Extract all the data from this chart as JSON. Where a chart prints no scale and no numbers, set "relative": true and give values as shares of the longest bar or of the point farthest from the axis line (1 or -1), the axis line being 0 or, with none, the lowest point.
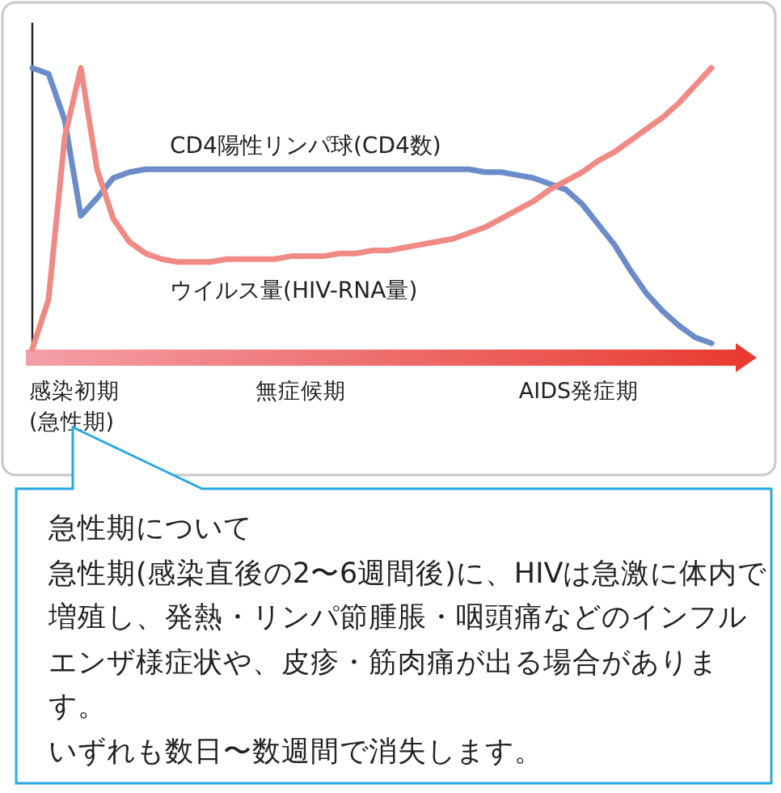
{
  "chart_data": {
    "type": "line",
    "relative": true,
    "categories": [
      null,
      null,
      null,
      null,
      null,
      null,
      null,
      null,
      null,
      null,
      null,
      null,
      null,
      null,
      null,
      null,
      null,
      null,
      null,
      null,
      null,
      null,
      null,
      null,
      null,
      null,
      null,
      null,
      null,
      null,
      null,
      null,
      null,
      null,
      null,
      null,
      null,
      null,
      null,
      null,
      null,
      null,
      null
    ],
    "series": [
      {
        "name": "CD4陽性リンパ球(CD4数)",
        "color": "#6b8cc8",
        "values": [
          1.0,
          0.98,
          0.82,
          0.49,
          0.55,
          0.62,
          0.64,
          0.65,
          0.65,
          0.65,
          0.65,
          0.65,
          0.65,
          0.65,
          0.65,
          0.65,
          0.65,
          0.65,
          0.65,
          0.65,
          0.65,
          0.65,
          0.65,
          0.65,
          0.65,
          0.65,
          0.65,
          0.65,
          0.64,
          0.64,
          0.63,
          0.62,
          0.6,
          0.58,
          0.53,
          0.46,
          0.39,
          0.3,
          0.22,
          0.16,
          0.11,
          0.07,
          0.05
        ]
      },
      {
        "name": "ウイルス量(HIV-RNA量)",
        "color": "#f08a84",
        "values": [
          0.03,
          0.2,
          0.76,
          1.0,
          0.65,
          0.48,
          0.4,
          0.36,
          0.34,
          0.33,
          0.33,
          0.33,
          0.34,
          0.34,
          0.34,
          0.34,
          0.35,
          0.35,
          0.35,
          0.36,
          0.36,
          0.37,
          0.37,
          0.38,
          0.39,
          0.4,
          0.41,
          0.43,
          0.45,
          0.48,
          0.51,
          0.54,
          0.58,
          0.61,
          0.64,
          0.68,
          0.71,
          0.75,
          0.79,
          0.83,
          0.88,
          0.94,
          1.0
        ]
      }
    ],
    "annotations": [
      "感染初期\n(急性期)",
      "無症候期",
      "AIDS発症期",
      "急性期について",
      "急性期(感染直後の2〜6週間後)に、HIVは急激に体内で増殖し、発熱・リンパ節腫脹・咽頭痛などのインフルエンザ様症状や、皮疹・筋肉痛が出る場合があります。",
      "いずれも数日〜数週間で消失します。"
    ]
  }
}
